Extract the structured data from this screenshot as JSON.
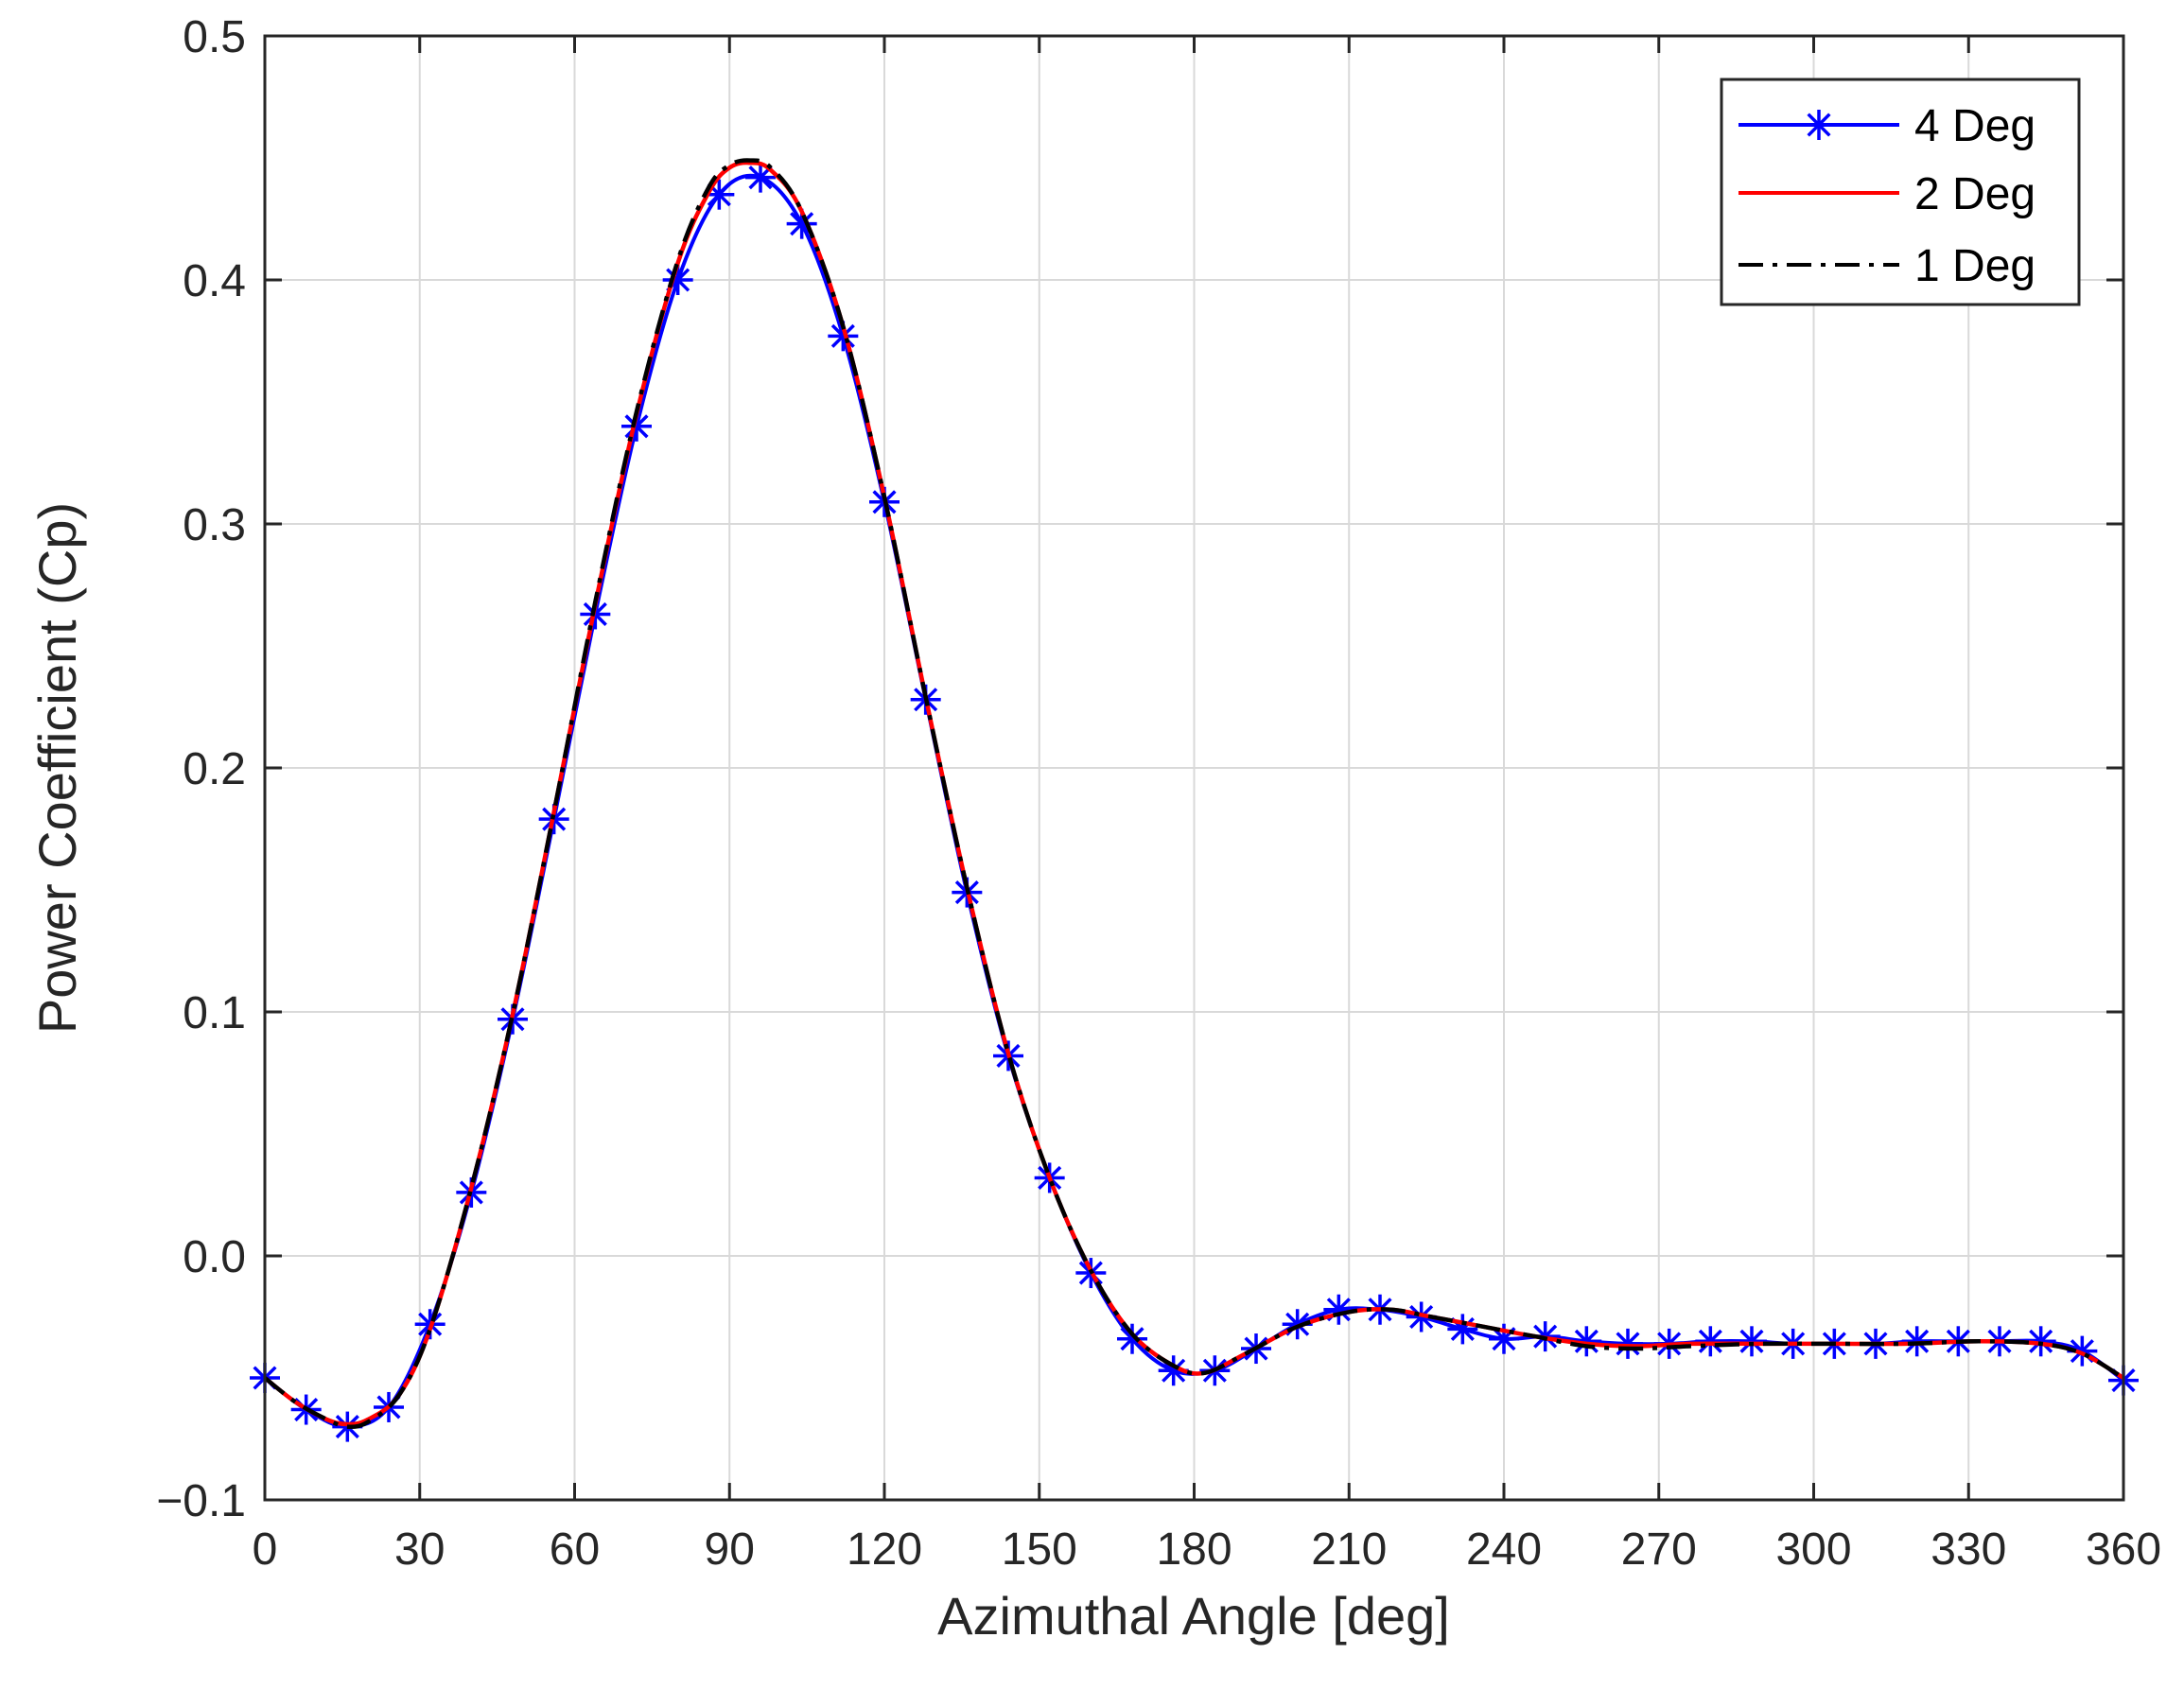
{
  "chart_data": {
    "type": "line",
    "title": "",
    "xlabel": "Azimuthal Angle [deg]",
    "ylabel": "Power Coefficient (Cp)",
    "xlim": [
      0,
      360
    ],
    "ylim": [
      -0.1,
      0.5
    ],
    "xticks": [
      0,
      30,
      60,
      90,
      120,
      150,
      180,
      210,
      240,
      270,
      300,
      330,
      360
    ],
    "xtick_labels": [
      "0",
      "30",
      "60",
      "90",
      "120",
      "150",
      "180",
      "210",
      "240",
      "270",
      "300",
      "330",
      "360"
    ],
    "yticks": [
      -0.1,
      0.0,
      0.1,
      0.2,
      0.3,
      0.4,
      0.5
    ],
    "ytick_labels": [
      "−0.1",
      "0.0",
      "0.1",
      "0.2",
      "0.3",
      "0.4",
      "0.5"
    ],
    "grid": true,
    "legend_position": "top-right",
    "series": [
      {
        "name": "4 Deg",
        "color": "#0000ff",
        "line": "solid",
        "marker": "asterisk",
        "x": [
          0,
          8,
          16,
          24,
          32,
          40,
          48,
          56,
          64,
          72,
          80,
          88,
          96,
          104,
          112,
          120,
          128,
          136,
          144,
          152,
          160,
          168,
          176,
          184,
          192,
          200,
          208,
          216,
          224,
          232,
          240,
          248,
          256,
          264,
          272,
          280,
          288,
          296,
          304,
          312,
          320,
          328,
          336,
          344,
          352,
          360
        ],
        "y": [
          -0.05,
          -0.063,
          -0.07,
          -0.062,
          -0.028,
          0.026,
          0.097,
          0.179,
          0.263,
          0.34,
          0.4,
          0.435,
          0.442,
          0.423,
          0.377,
          0.309,
          0.228,
          0.149,
          0.082,
          0.032,
          -0.007,
          -0.034,
          -0.047,
          -0.047,
          -0.038,
          -0.028,
          -0.022,
          -0.022,
          -0.025,
          -0.03,
          -0.034,
          -0.033,
          -0.035,
          -0.036,
          -0.036,
          -0.035,
          -0.035,
          -0.036,
          -0.036,
          -0.036,
          -0.035,
          -0.035,
          -0.035,
          -0.035,
          -0.039,
          -0.051
        ]
      },
      {
        "name": "2 Deg",
        "color": "#ff0000",
        "line": "solid",
        "marker": "none",
        "x": [
          0,
          6,
          12,
          16,
          20,
          26,
          32,
          40,
          48,
          56,
          64,
          72,
          80,
          86,
          90,
          94,
          98,
          104,
          112,
          120,
          128,
          136,
          144,
          152,
          160,
          168,
          176,
          182,
          190,
          200,
          210,
          218,
          226,
          236,
          246,
          256,
          266,
          276,
          290,
          304,
          318,
          332,
          344,
          352,
          360
        ],
        "y": [
          -0.05,
          -0.06,
          -0.067,
          -0.069,
          -0.067,
          -0.057,
          -0.03,
          0.028,
          0.099,
          0.182,
          0.267,
          0.345,
          0.407,
          0.436,
          0.446,
          0.448,
          0.445,
          0.428,
          0.381,
          0.311,
          0.229,
          0.151,
          0.083,
          0.032,
          -0.006,
          -0.032,
          -0.045,
          -0.048,
          -0.04,
          -0.029,
          -0.023,
          -0.022,
          -0.025,
          -0.029,
          -0.033,
          -0.036,
          -0.037,
          -0.036,
          -0.036,
          -0.036,
          -0.036,
          -0.035,
          -0.036,
          -0.04,
          -0.05
        ]
      },
      {
        "name": "1 Deg",
        "color": "#000000",
        "line": "dash-dot",
        "marker": "none",
        "x": [
          0,
          6,
          12,
          16,
          20,
          26,
          32,
          40,
          48,
          56,
          64,
          72,
          80,
          86,
          90,
          94,
          98,
          104,
          112,
          120,
          128,
          136,
          144,
          152,
          160,
          168,
          176,
          182,
          190,
          200,
          210,
          218,
          226,
          236,
          246,
          256,
          266,
          276,
          290,
          304,
          318,
          332,
          344,
          352,
          360
        ],
        "y": [
          -0.05,
          -0.06,
          -0.067,
          -0.07,
          -0.068,
          -0.057,
          -0.03,
          0.028,
          0.099,
          0.182,
          0.268,
          0.346,
          0.408,
          0.438,
          0.447,
          0.449,
          0.446,
          0.428,
          0.381,
          0.311,
          0.229,
          0.151,
          0.083,
          0.032,
          -0.006,
          -0.032,
          -0.045,
          -0.048,
          -0.04,
          -0.029,
          -0.023,
          -0.022,
          -0.025,
          -0.029,
          -0.033,
          -0.037,
          -0.038,
          -0.037,
          -0.036,
          -0.036,
          -0.036,
          -0.035,
          -0.036,
          -0.04,
          -0.05
        ]
      }
    ]
  }
}
